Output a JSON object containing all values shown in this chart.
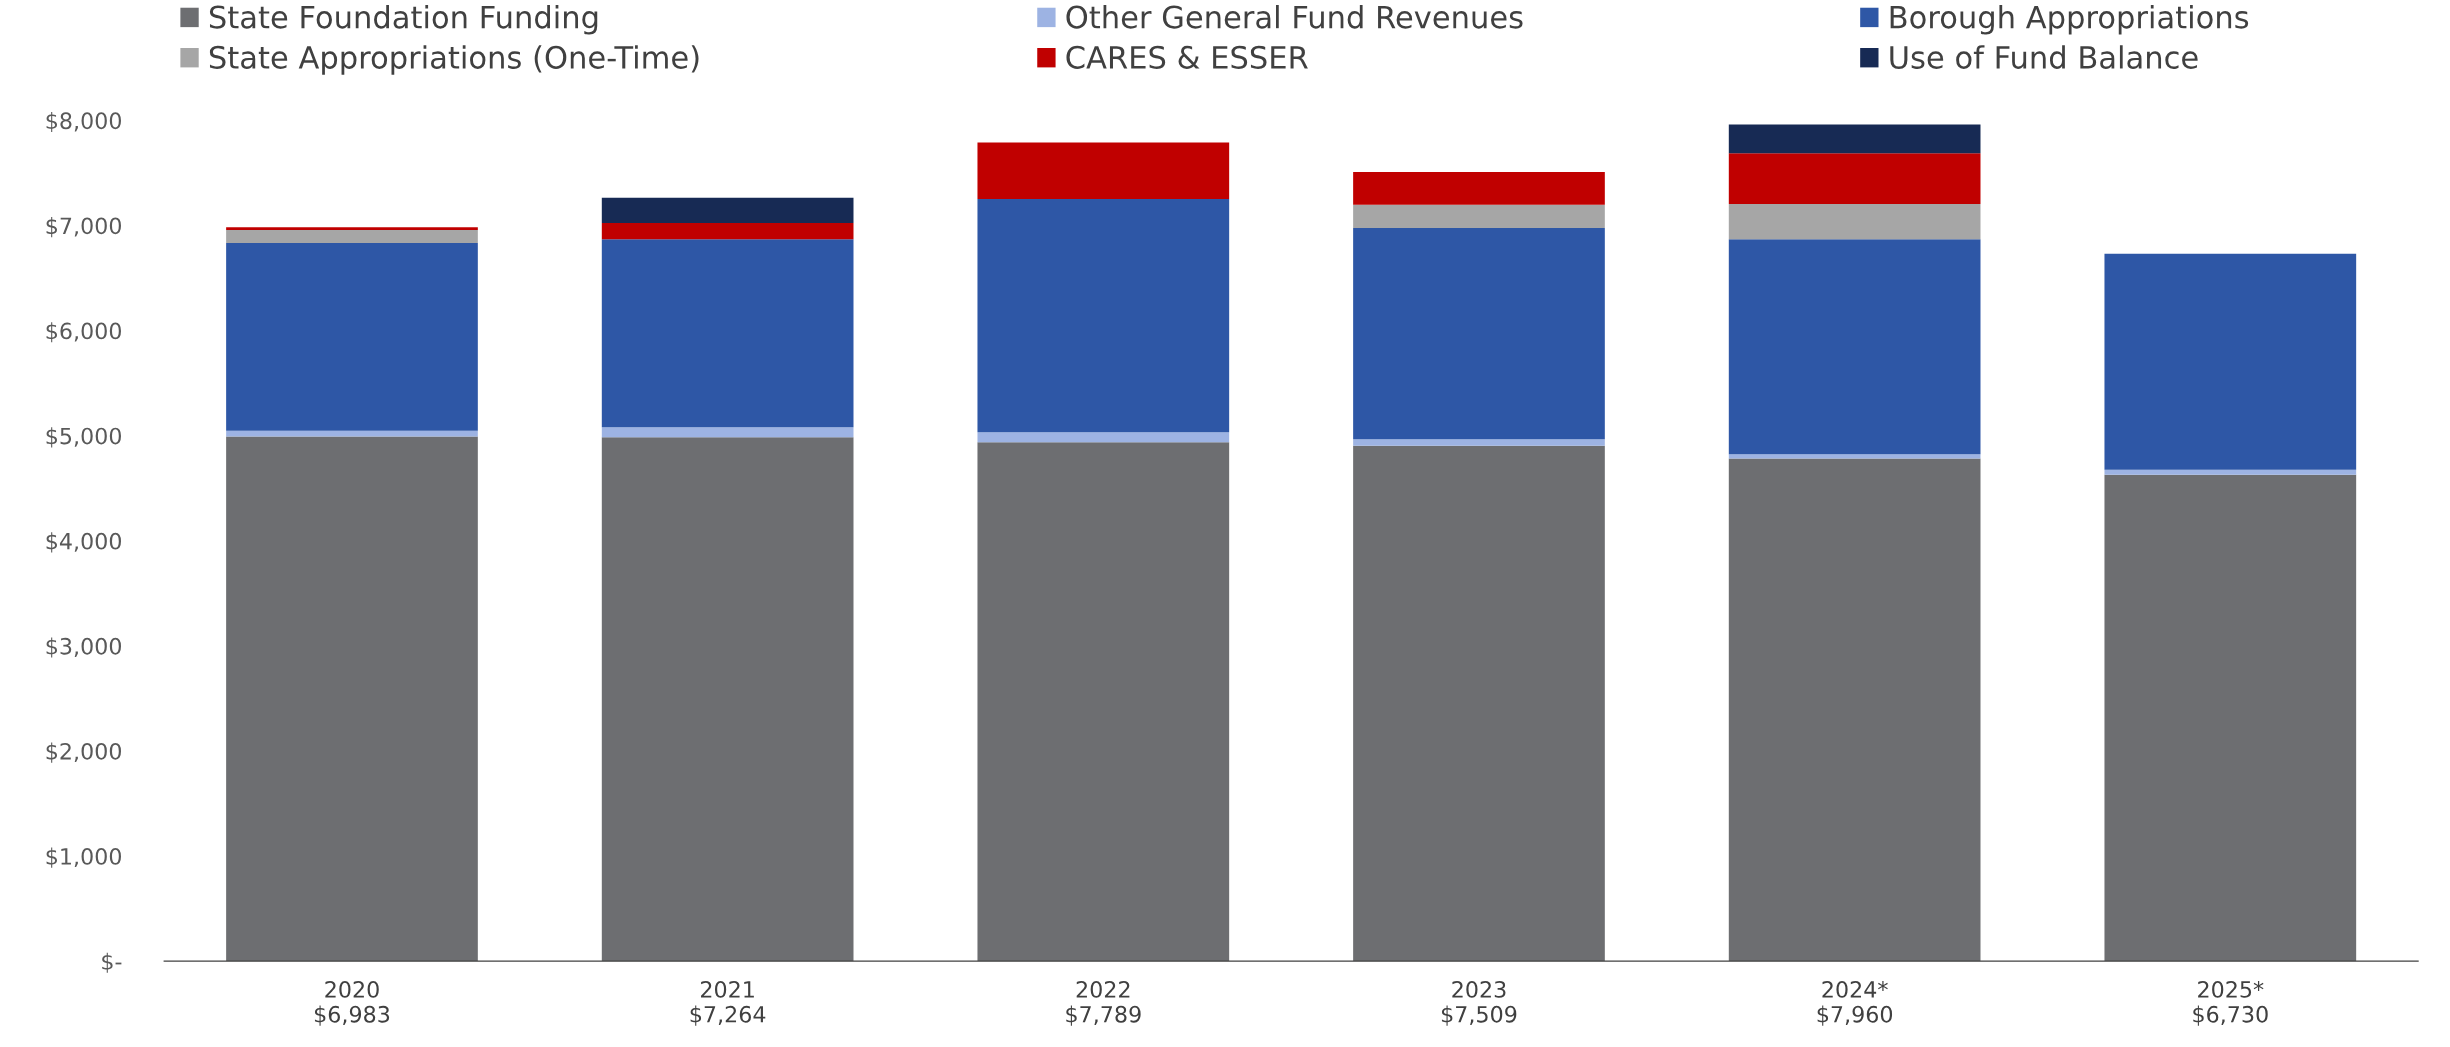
{
  "chart_data": {
    "type": "bar",
    "stacked": true,
    "categories": [
      "2020\n$6,983",
      "2021\n$7,264",
      "2022\n$7,789",
      "2023\n$7,509",
      "2024*\n$7,960",
      "2025*\n$6,730"
    ],
    "series": [
      {
        "name": "State Foundation Funding",
        "color": "#6d6e71",
        "values": [
          4992,
          4986,
          4938,
          4904,
          4783,
          4629
        ]
      },
      {
        "name": "Other General Fund Revenues",
        "color": "#9db3e3",
        "values": [
          54,
          94,
          95,
          62,
          41,
          47
        ]
      },
      {
        "name": "Borough Appropriations",
        "color": "#2e57a6",
        "values": [
          1788,
          1788,
          2218,
          2010,
          2044,
          2054
        ]
      },
      {
        "name": "State Appropriations (One-Time)",
        "color": "#a6a6a6",
        "values": [
          122,
          0,
          0,
          221,
          336,
          0
        ]
      },
      {
        "name": "CARES & ESSER",
        "color": "#c00000",
        "values": [
          27,
          155,
          538,
          312,
          484,
          0
        ]
      },
      {
        "name": "Use of Fund Balance",
        "color": "#172a54",
        "values": [
          0,
          241,
          0,
          0,
          272,
          0
        ]
      }
    ],
    "ylim": [
      0,
      8000
    ],
    "yticks": [
      {
        "value": 0,
        "label": "$-"
      },
      {
        "value": 1000,
        "label": "$1,000"
      },
      {
        "value": 2000,
        "label": "$2,000"
      },
      {
        "value": 3000,
        "label": "$3,000"
      },
      {
        "value": 4000,
        "label": "$4,000"
      },
      {
        "value": 5000,
        "label": "$5,000"
      },
      {
        "value": 6000,
        "label": "$6,000"
      },
      {
        "value": 7000,
        "label": "$7,000"
      },
      {
        "value": 8000,
        "label": "$8,000"
      }
    ],
    "grid": false,
    "legend": "top"
  }
}
